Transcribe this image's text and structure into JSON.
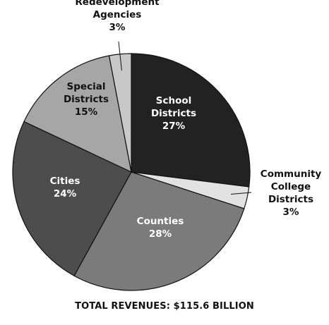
{
  "chart_data": {
    "type": "pie",
    "caption": "TOTAL REVENUES: $115.6 BILLION",
    "slices": [
      {
        "label_lines": [
          "School",
          "Districts"
        ],
        "percent_label": "27%",
        "value": 27,
        "color": "#222222",
        "label_style": "dark"
      },
      {
        "label_lines": [
          "Community",
          "College",
          "Districts"
        ],
        "percent_label": "3%",
        "value": 3,
        "color": "#e2e2e2",
        "label_style": "light"
      },
      {
        "label_lines": [
          "Counties"
        ],
        "percent_label": "28%",
        "value": 28,
        "color": "#7b7b7b",
        "label_style": "dark"
      },
      {
        "label_lines": [
          "Cities"
        ],
        "percent_label": "24%",
        "value": 24,
        "color": "#4d4d4d",
        "label_style": "dark"
      },
      {
        "label_lines": [
          "Special",
          "Districts"
        ],
        "percent_label": "15%",
        "value": 15,
        "color": "#a6a6a6",
        "label_style": "light"
      },
      {
        "label_lines": [
          "Redevelopment",
          "Agencies"
        ],
        "percent_label": "3%",
        "value": 3,
        "color": "#c8c8c8",
        "label_style": "light"
      }
    ]
  }
}
